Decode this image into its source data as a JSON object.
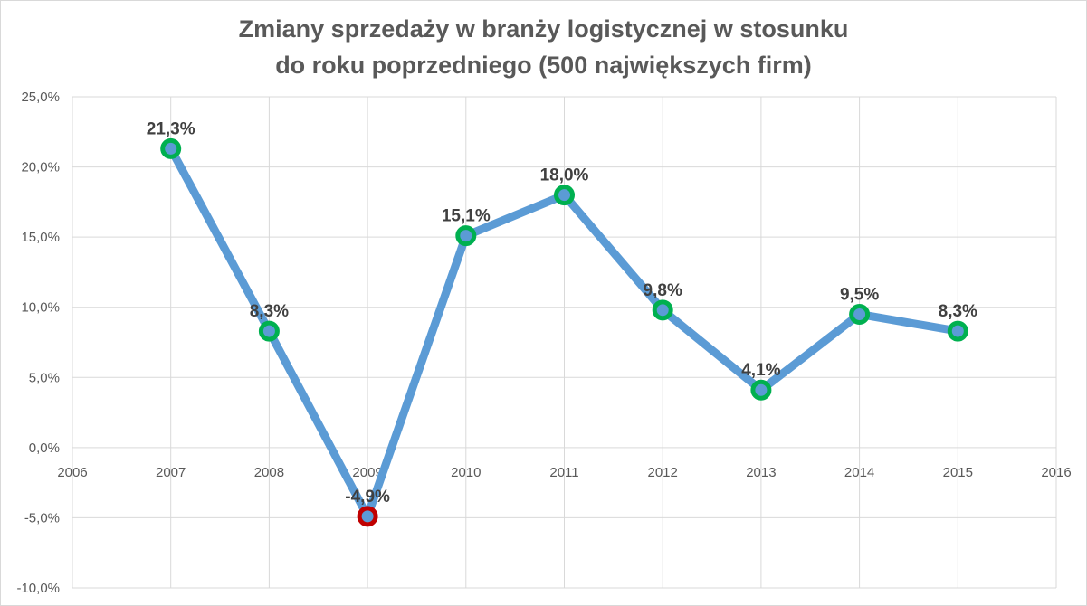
{
  "chart_data": {
    "type": "scatter",
    "title_lines": [
      "Zmiany sprzedaży w branży logistycznej w stosunku",
      "do roku poprzedniego (500 największych firm)"
    ],
    "xlabel": "",
    "ylabel": "",
    "xlim": [
      2006,
      2016
    ],
    "ylim": [
      -10,
      25
    ],
    "x_ticks": [
      {
        "value": 2006,
        "label": "2006"
      },
      {
        "value": 2007,
        "label": "2007"
      },
      {
        "value": 2008,
        "label": "2008"
      },
      {
        "value": 2009,
        "label": "2009"
      },
      {
        "value": 2010,
        "label": "2010"
      },
      {
        "value": 2011,
        "label": "2011"
      },
      {
        "value": 2012,
        "label": "2012"
      },
      {
        "value": 2013,
        "label": "2013"
      },
      {
        "value": 2014,
        "label": "2014"
      },
      {
        "value": 2015,
        "label": "2015"
      },
      {
        "value": 2016,
        "label": "2016"
      }
    ],
    "y_ticks": [
      {
        "value": 25,
        "label": "25,0%"
      },
      {
        "value": 20,
        "label": "20,0%"
      },
      {
        "value": 15,
        "label": "15,0%"
      },
      {
        "value": 10,
        "label": "10,0%"
      },
      {
        "value": 5,
        "label": "5,0%"
      },
      {
        "value": 0,
        "label": "0,0%"
      },
      {
        "value": -5,
        "label": "-5,0%"
      },
      {
        "value": -10,
        "label": "-10,0%"
      }
    ],
    "grid": true,
    "legend": "none",
    "series": [
      {
        "line_color": "#5b9bd5",
        "points": [
          {
            "x": 2007,
            "y": 21.3,
            "label": "21,3%",
            "marker_color": "#00b050"
          },
          {
            "x": 2008,
            "y": 8.3,
            "label": "8,3%",
            "marker_color": "#00b050"
          },
          {
            "x": 2009,
            "y": -4.9,
            "label": "-4,9%",
            "marker_color": "#c00000"
          },
          {
            "x": 2010,
            "y": 15.1,
            "label": "15,1%",
            "marker_color": "#00b050"
          },
          {
            "x": 2011,
            "y": 18.0,
            "label": "18,0%",
            "marker_color": "#00b050"
          },
          {
            "x": 2012,
            "y": 9.8,
            "label": "9,8%",
            "marker_color": "#00b050"
          },
          {
            "x": 2013,
            "y": 4.1,
            "label": "4,1%",
            "marker_color": "#00b050"
          },
          {
            "x": 2014,
            "y": 9.5,
            "label": "9,5%",
            "marker_color": "#00b050"
          },
          {
            "x": 2015,
            "y": 8.3,
            "label": "8,3%",
            "marker_color": "#00b050"
          }
        ]
      }
    ]
  }
}
